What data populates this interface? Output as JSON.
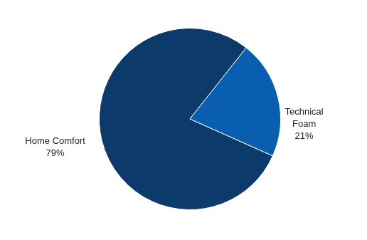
{
  "chart_data": {
    "type": "pie",
    "categories": [
      "Home Comfort",
      "Technical Foam"
    ],
    "values": [
      79,
      21
    ],
    "value_labels": [
      "79%",
      "21%"
    ],
    "colors": [
      "#0b3a6b",
      "#0a5eb0"
    ],
    "data_labels": true
  }
}
